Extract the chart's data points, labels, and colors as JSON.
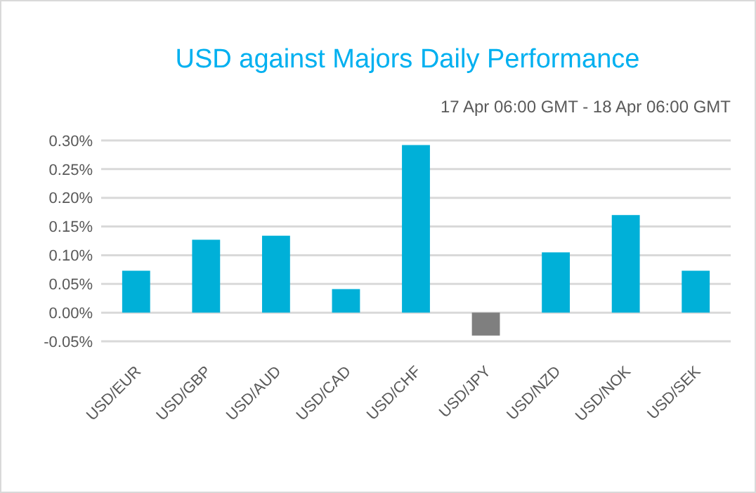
{
  "chart_data": {
    "type": "bar",
    "title": "USD against Majors Daily Performance",
    "subtitle": "17 Apr 06:00 GMT - 18 Apr 06:00 GMT",
    "categories": [
      "USD/EUR",
      "USD/GBP",
      "USD/AUD",
      "USD/CAD",
      "USD/CHF",
      "USD/JPY",
      "USD/NZD",
      "USD/NOK",
      "USD/SEK"
    ],
    "values": [
      0.073,
      0.127,
      0.134,
      0.041,
      0.292,
      -0.04,
      0.105,
      0.17,
      0.073
    ],
    "colors": [
      "#00b0d8",
      "#00b0d8",
      "#00b0d8",
      "#00b0d8",
      "#00b0d8",
      "#7f7f7f",
      "#00b0d8",
      "#00b0d8",
      "#00b0d8"
    ],
    "ylim": [
      -0.05,
      0.3
    ],
    "yticks": [
      {
        "value": -0.05,
        "label": "-0.05%"
      },
      {
        "value": 0,
        "label": "0.00%"
      },
      {
        "value": 0.05,
        "label": "0.05%"
      },
      {
        "value": 0.1,
        "label": "0.10%"
      },
      {
        "value": 0.15,
        "label": "0.15%"
      },
      {
        "value": 0.2,
        "label": "0.20%"
      },
      {
        "value": 0.25,
        "label": "0.25%"
      },
      {
        "value": 0.3,
        "label": "0.30%"
      }
    ],
    "grid": "y"
  }
}
